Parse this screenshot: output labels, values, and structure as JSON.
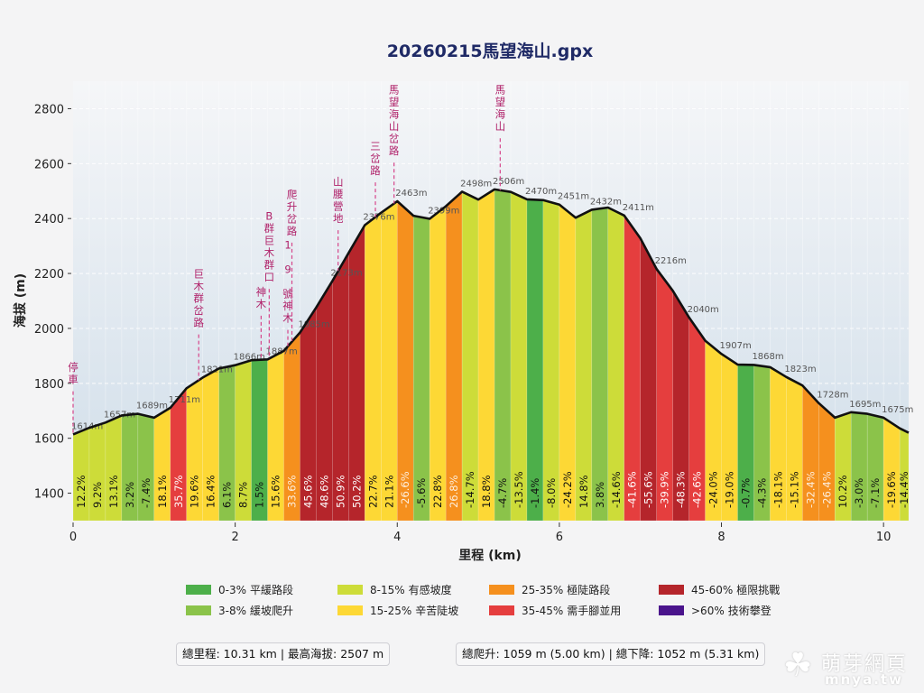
{
  "chart_data": {
    "type": "area",
    "title": "20260215馬望海山.gpx",
    "xlabel": "里程 (km)",
    "ylabel": "海拔 (m)",
    "xlim": [
      0,
      10.31
    ],
    "ylim": [
      1300,
      2900
    ],
    "xticks": [
      0,
      2,
      4,
      6,
      8,
      10
    ],
    "xtick_labels": [
      "0",
      "2",
      "4",
      "6",
      "8",
      "10"
    ],
    "yticks": [
      1400,
      1600,
      1800,
      2000,
      2200,
      2400,
      2600,
      2800
    ],
    "ytick_labels": [
      "1400",
      "1600",
      "1800",
      "2000",
      "2200",
      "2400",
      "2600",
      "2800"
    ],
    "grid": true,
    "profile": {
      "distance_km": [
        0,
        0.2,
        0.4,
        0.6,
        0.8,
        1.0,
        1.2,
        1.4,
        1.6,
        1.8,
        2.0,
        2.2,
        2.4,
        2.6,
        2.8,
        3.0,
        3.2,
        3.4,
        3.6,
        3.8,
        4.0,
        4.2,
        4.4,
        4.6,
        4.8,
        5.0,
        5.2,
        5.4,
        5.6,
        5.8,
        6.0,
        6.2,
        6.4,
        6.6,
        6.8,
        7.0,
        7.2,
        7.4,
        7.6,
        7.8,
        8.0,
        8.2,
        8.4,
        8.6,
        8.8,
        9.0,
        9.2,
        9.4,
        9.6,
        9.8,
        10.0,
        10.2,
        10.31
      ],
      "elevation_m": [
        1614,
        1638,
        1657,
        1683,
        1689,
        1675,
        1711,
        1782,
        1821,
        1854,
        1866,
        1884,
        1887,
        1918,
        1985,
        2076,
        2173,
        2275,
        2376,
        2421,
        2463,
        2410,
        2399,
        2445,
        2498,
        2469,
        2506,
        2497,
        2470,
        2467,
        2451,
        2403,
        2432,
        2440,
        2411,
        2328,
        2216,
        2137,
        2040,
        1955,
        1907,
        1868,
        1867,
        1859,
        1823,
        1792,
        1728,
        1675,
        1695,
        1689,
        1675,
        1636,
        1620
      ]
    },
    "segment_grades": [
      {
        "label": "12.2%",
        "value": 12.2
      },
      {
        "label": "9.2%",
        "value": 9.2
      },
      {
        "label": "13.1%",
        "value": 13.1
      },
      {
        "label": "3.2%",
        "value": 3.2
      },
      {
        "label": "-7.4%",
        "value": -7.4
      },
      {
        "label": "18.1%",
        "value": 18.1
      },
      {
        "label": "35.7%",
        "value": 35.7
      },
      {
        "label": "19.6%",
        "value": 19.6
      },
      {
        "label": "16.4%",
        "value": 16.4
      },
      {
        "label": "6.1%",
        "value": 6.1
      },
      {
        "label": "8.7%",
        "value": 8.7
      },
      {
        "label": "1.5%",
        "value": 1.5
      },
      {
        "label": "15.6%",
        "value": 15.6
      },
      {
        "label": "33.6%",
        "value": 33.6
      },
      {
        "label": "45.6%",
        "value": 45.6
      },
      {
        "label": "48.6%",
        "value": 48.6
      },
      {
        "label": "50.9%",
        "value": 50.9
      },
      {
        "label": "50.2%",
        "value": 50.2
      },
      {
        "label": "22.7%",
        "value": 22.7
      },
      {
        "label": "21.1%",
        "value": 21.1
      },
      {
        "label": "-26.6%",
        "value": -26.6
      },
      {
        "label": "-5.6%",
        "value": -5.6
      },
      {
        "label": "22.8%",
        "value": 22.8
      },
      {
        "label": "26.8%",
        "value": 26.8
      },
      {
        "label": "-14.7%",
        "value": -14.7
      },
      {
        "label": "18.8%",
        "value": 18.8
      },
      {
        "label": "-4.7%",
        "value": -4.7
      },
      {
        "label": "-13.5%",
        "value": -13.5
      },
      {
        "label": "-1.4%",
        "value": -1.4
      },
      {
        "label": "-8.0%",
        "value": -8.0
      },
      {
        "label": "-24.2%",
        "value": -24.2
      },
      {
        "label": "14.8%",
        "value": 14.8
      },
      {
        "label": "3.8%",
        "value": 3.8
      },
      {
        "label": "-14.6%",
        "value": -14.6
      },
      {
        "label": "-41.6%",
        "value": -41.6
      },
      {
        "label": "-55.6%",
        "value": -55.6
      },
      {
        "label": "-39.9%",
        "value": -39.9
      },
      {
        "label": "-48.3%",
        "value": -48.3
      },
      {
        "label": "-42.6%",
        "value": -42.6
      },
      {
        "label": "-24.0%",
        "value": -24.0
      },
      {
        "label": "-19.0%",
        "value": -19.0
      },
      {
        "label": "-0.7%",
        "value": -0.7
      },
      {
        "label": "-4.3%",
        "value": -4.3
      },
      {
        "label": "-18.1%",
        "value": -18.1
      },
      {
        "label": "-15.1%",
        "value": -15.1
      },
      {
        "label": "-32.4%",
        "value": -32.4
      },
      {
        "label": "-26.4%",
        "value": -26.4
      },
      {
        "label": "10.2%",
        "value": 10.2
      },
      {
        "label": "-3.0%",
        "value": -3.0
      },
      {
        "label": "-7.1%",
        "value": -7.1
      },
      {
        "label": "-19.6%",
        "value": -19.6
      },
      {
        "label": "-14.4%",
        "value": -14.4
      }
    ],
    "elevation_labels": [
      {
        "km": 0,
        "elev": 1614,
        "label": "1614m"
      },
      {
        "km": 0.4,
        "elev": 1657,
        "label": "1657m"
      },
      {
        "km": 0.8,
        "elev": 1689,
        "label": "1689m"
      },
      {
        "km": 1.2,
        "elev": 1711,
        "label": "1711m"
      },
      {
        "km": 1.6,
        "elev": 1821,
        "label": "1821m"
      },
      {
        "km": 2.0,
        "elev": 1866,
        "label": "1866m"
      },
      {
        "km": 2.4,
        "elev": 1887,
        "label": "1887m"
      },
      {
        "km": 2.8,
        "elev": 1985,
        "label": "1985m"
      },
      {
        "km": 3.2,
        "elev": 2173,
        "label": "2173m"
      },
      {
        "km": 3.6,
        "elev": 2376,
        "label": "2376m"
      },
      {
        "km": 4.0,
        "elev": 2463,
        "label": "2463m"
      },
      {
        "km": 4.4,
        "elev": 2399,
        "label": "2399m"
      },
      {
        "km": 4.8,
        "elev": 2498,
        "label": "2498m"
      },
      {
        "km": 5.2,
        "elev": 2506,
        "label": "2506m"
      },
      {
        "km": 5.6,
        "elev": 2470,
        "label": "2470m"
      },
      {
        "km": 6.0,
        "elev": 2451,
        "label": "2451m"
      },
      {
        "km": 6.4,
        "elev": 2432,
        "label": "2432m"
      },
      {
        "km": 6.8,
        "elev": 2411,
        "label": "2411m"
      },
      {
        "km": 7.2,
        "elev": 2216,
        "label": "2216m"
      },
      {
        "km": 7.6,
        "elev": 2040,
        "label": "2040m"
      },
      {
        "km": 8.0,
        "elev": 1907,
        "label": "1907m"
      },
      {
        "km": 8.4,
        "elev": 1868,
        "label": "1868m"
      },
      {
        "km": 8.8,
        "elev": 1823,
        "label": "1823m"
      },
      {
        "km": 9.2,
        "elev": 1728,
        "label": "1728m"
      },
      {
        "km": 9.6,
        "elev": 1695,
        "label": "1695m"
      },
      {
        "km": 10.0,
        "elev": 1675,
        "label": "1675m"
      }
    ],
    "waypoints": [
      {
        "km": 0,
        "name": "停車",
        "label_top_elev": 1845
      },
      {
        "km": 1.55,
        "name": "巨木群岔路",
        "label_top_elev": 2185
      },
      {
        "km": 2.32,
        "name": "神木",
        "label_top_elev": 2120
      },
      {
        "km": 2.42,
        "name": "B群巨木群口",
        "label_top_elev": 2395
      },
      {
        "km": 2.65,
        "name": "1 9 號神木",
        "label_top_elev": 2290
      },
      {
        "km": 2.7,
        "name": "爬升岔路",
        "label_top_elev": 2475
      },
      {
        "km": 3.27,
        "name": "山腰營地",
        "label_top_elev": 2520
      },
      {
        "km": 3.73,
        "name": "三岔路",
        "label_top_elev": 2650
      },
      {
        "km": 3.96,
        "name": "馬望海山岔路",
        "label_top_elev": 2855
      },
      {
        "km": 5.27,
        "name": "馬望海山",
        "label_top_elev": 2855
      }
    ],
    "legend_position": "bottom",
    "legend": [
      {
        "range": "0-3%",
        "name": "平緩路段",
        "color": "#4daf4a",
        "max": 3
      },
      {
        "range": "8-15%",
        "name": "有感坡度",
        "color": "#cddc39",
        "max": 15
      },
      {
        "range": "25-35%",
        "name": "極陡路段",
        "color": "#f5901e",
        "max": 35
      },
      {
        "range": "45-60%",
        "name": "極限挑戰",
        "color": "#b5252b",
        "max": 60
      },
      {
        "range": "3-8%",
        "name": "緩坡爬升",
        "color": "#8bc34a",
        "max": 8
      },
      {
        "range": "15-25%",
        "name": "辛苦陡坡",
        "color": "#fdd835",
        "max": 25
      },
      {
        "range": "35-45%",
        "name": "需手腳並用",
        "color": "#e53e3e",
        "max": 45
      },
      {
        "range": ">60%",
        "name": "技術攀登",
        "color": "#4a148c",
        "max": 999
      }
    ]
  },
  "stats": {
    "left": "總里程: 10.31 km | 最高海拔: 2507 m",
    "right": "總爬升: 1059 m (5.00 km) | 總下降: 1052 m (5.31 km)"
  },
  "watermark": {
    "cn": "萌芽網頁",
    "en": "mnya.tw"
  }
}
